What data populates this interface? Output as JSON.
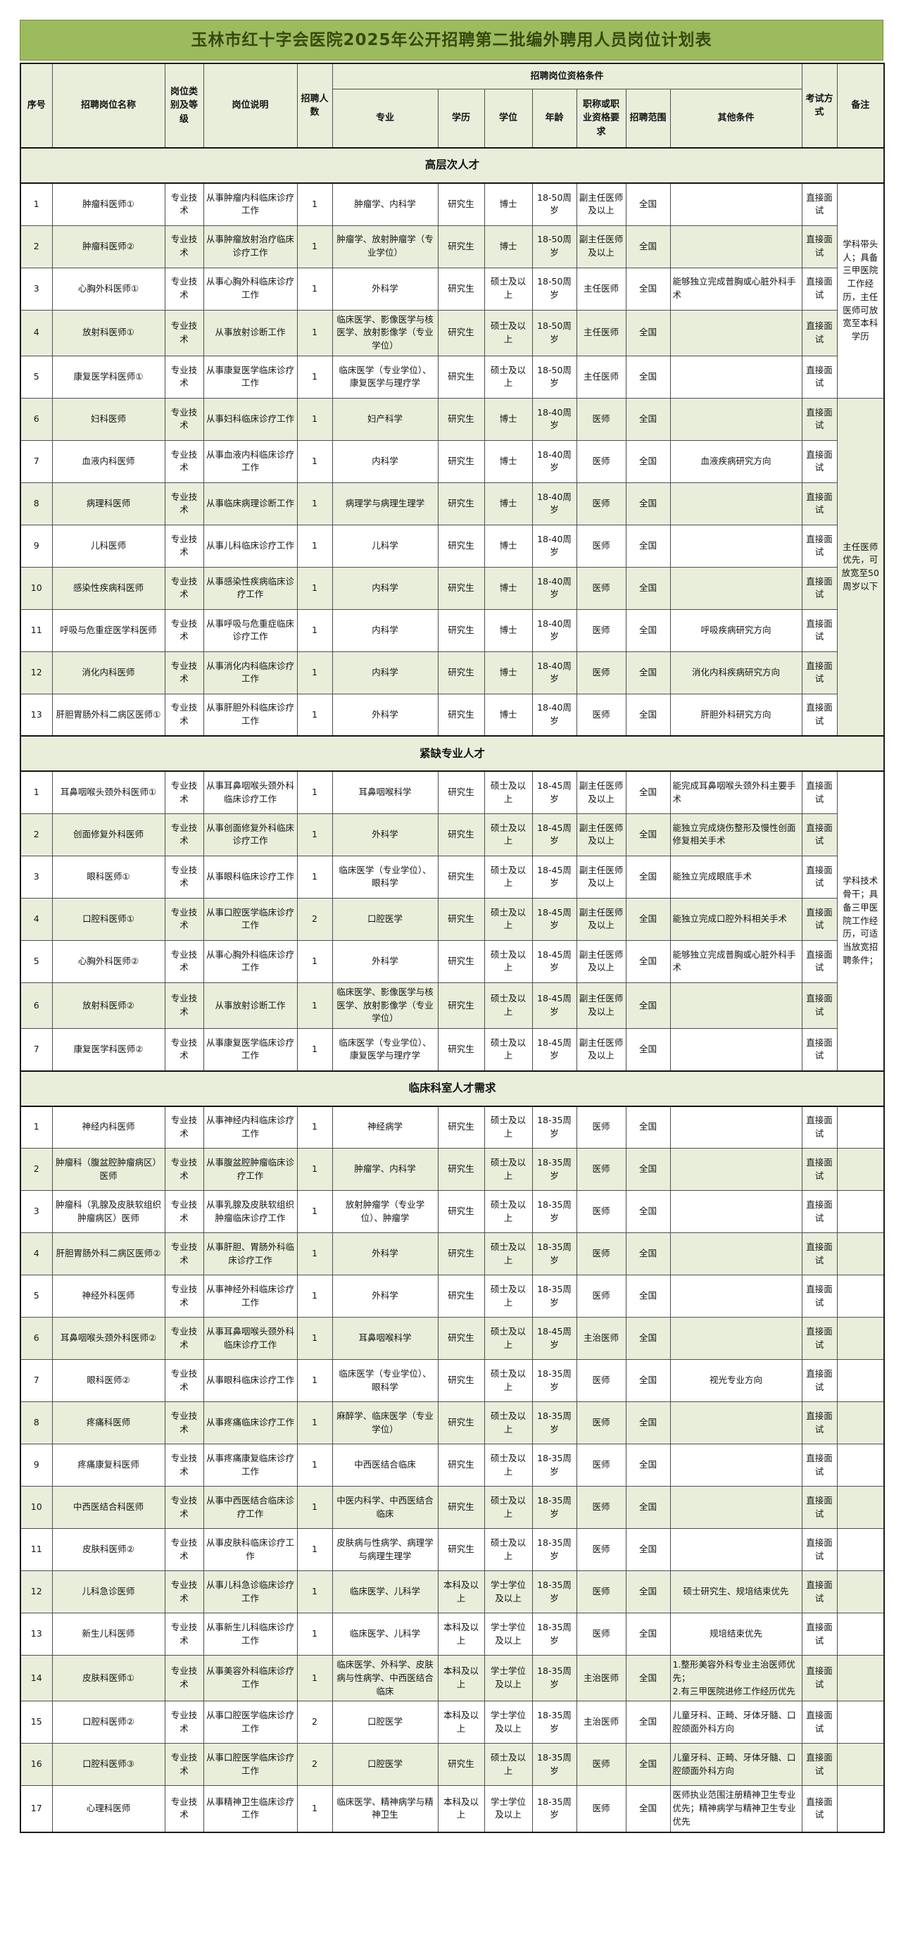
{
  "title": "玉林市红十字会医院2025年公开招聘第二批编外聘用人员岗位计划表",
  "colors": {
    "title_bg": "#9cbb5e",
    "title_text": "#36490f",
    "header_bg": "#e9eedb",
    "row_alt_bg": "#e9eedb",
    "row_bg": "#ffffff",
    "border": "#4f4f4f"
  },
  "header": {
    "seq": "序号",
    "post_name": "招聘岗位名称",
    "post_category": "岗位类别及等级",
    "post_desc": "岗位说明",
    "headcount": "招聘人数",
    "qual_group": "招聘岗位资格条件",
    "major": "专业",
    "education": "学历",
    "degree": "学位",
    "age": "年龄",
    "title_req": "职称或职业资格要求",
    "scope": "招聘范围",
    "other": "其他条件",
    "exam": "考试方式",
    "remark": "备注"
  },
  "sections": [
    {
      "name": "高层次人才",
      "remarks": [
        {
          "start": 0,
          "span": 5,
          "bg": "white",
          "text": "学科带头人；具备三甲医院工作经历，主任医师可放宽至本科学历"
        },
        {
          "start": 5,
          "span": 8,
          "bg": "green",
          "text": "主任医师优先，可放宽至50周岁以下"
        }
      ],
      "rows": [
        {
          "seq": "1",
          "name": "肿瘤科医师①",
          "category": "专业技术",
          "desc": "从事肿瘤内科临床诊疗工作",
          "count": "1",
          "major": "肿瘤学、内科学",
          "edu": "研究生",
          "degree": "博士",
          "age": "18-50周岁",
          "title": "副主任医师及以上",
          "scope": "全国",
          "other": "",
          "exam": "直接面试"
        },
        {
          "seq": "2",
          "name": "肿瘤科医师②",
          "category": "专业技术",
          "desc": "从事肿瘤放射治疗临床诊疗工作",
          "count": "1",
          "major": "肿瘤学、放射肿瘤学（专业学位）",
          "edu": "研究生",
          "degree": "博士",
          "age": "18-50周岁",
          "title": "副主任医师及以上",
          "scope": "全国",
          "other": "",
          "exam": "直接面试"
        },
        {
          "seq": "3",
          "name": "心胸外科医师①",
          "category": "专业技术",
          "desc": "从事心胸外科临床诊疗工作",
          "count": "1",
          "major": "外科学",
          "edu": "研究生",
          "degree": "硕士及以上",
          "age": "18-50周岁",
          "title": "主任医师",
          "scope": "全国",
          "other": "能够独立完成普胸或心脏外科手术",
          "exam": "直接面试"
        },
        {
          "seq": "4",
          "name": "放射科医师①",
          "category": "专业技术",
          "desc": "从事放射诊断工作",
          "count": "1",
          "major": "临床医学、影像医学与核医学、放射影像学（专业学位）",
          "edu": "研究生",
          "degree": "硕士及以上",
          "age": "18-50周岁",
          "title": "主任医师",
          "scope": "全国",
          "other": "",
          "exam": "直接面试"
        },
        {
          "seq": "5",
          "name": "康复医学科医师①",
          "category": "专业技术",
          "desc": "从事康复医学临床诊疗工作",
          "count": "1",
          "major": "临床医学（专业学位）、康复医学与理疗学",
          "edu": "研究生",
          "degree": "硕士及以上",
          "age": "18-50周岁",
          "title": "主任医师",
          "scope": "全国",
          "other": "",
          "exam": "直接面试"
        },
        {
          "seq": "6",
          "name": "妇科医师",
          "category": "专业技术",
          "desc": "从事妇科临床诊疗工作",
          "count": "1",
          "major": "妇产科学",
          "edu": "研究生",
          "degree": "博士",
          "age": "18-40周岁",
          "title": "医师",
          "scope": "全国",
          "other": "",
          "exam": "直接面试"
        },
        {
          "seq": "7",
          "name": "血液内科医师",
          "category": "专业技术",
          "desc": "从事血液内科临床诊疗工作",
          "count": "1",
          "major": "内科学",
          "edu": "研究生",
          "degree": "博士",
          "age": "18-40周岁",
          "title": "医师",
          "scope": "全国",
          "other": "血液疾病研究方向",
          "exam": "直接面试"
        },
        {
          "seq": "8",
          "name": "病理科医师",
          "category": "专业技术",
          "desc": "从事临床病理诊断工作",
          "count": "1",
          "major": "病理学与病理生理学",
          "edu": "研究生",
          "degree": "博士",
          "age": "18-40周岁",
          "title": "医师",
          "scope": "全国",
          "other": "",
          "exam": "直接面试"
        },
        {
          "seq": "9",
          "name": "儿科医师",
          "category": "专业技术",
          "desc": "从事儿科临床诊疗工作",
          "count": "1",
          "major": "儿科学",
          "edu": "研究生",
          "degree": "博士",
          "age": "18-40周岁",
          "title": "医师",
          "scope": "全国",
          "other": "",
          "exam": "直接面试"
        },
        {
          "seq": "10",
          "name": "感染性疾病科医师",
          "category": "专业技术",
          "desc": "从事感染性疾病临床诊疗工作",
          "count": "1",
          "major": "内科学",
          "edu": "研究生",
          "degree": "博士",
          "age": "18-40周岁",
          "title": "医师",
          "scope": "全国",
          "other": "",
          "exam": "直接面试"
        },
        {
          "seq": "11",
          "name": "呼吸与危重症医学科医师",
          "category": "专业技术",
          "desc": "从事呼吸与危重症临床诊疗工作",
          "count": "1",
          "major": "内科学",
          "edu": "研究生",
          "degree": "博士",
          "age": "18-40周岁",
          "title": "医师",
          "scope": "全国",
          "other": "呼吸疾病研究方向",
          "exam": "直接面试"
        },
        {
          "seq": "12",
          "name": "消化内科医师",
          "category": "专业技术",
          "desc": "从事消化内科临床诊疗工作",
          "count": "1",
          "major": "内科学",
          "edu": "研究生",
          "degree": "博士",
          "age": "18-40周岁",
          "title": "医师",
          "scope": "全国",
          "other": "消化内科疾病研究方向",
          "exam": "直接面试"
        },
        {
          "seq": "13",
          "name": "肝胆胃肠外科二病区医师①",
          "category": "专业技术",
          "desc": "从事肝胆外科临床诊疗工作",
          "count": "1",
          "major": "外科学",
          "edu": "研究生",
          "degree": "博士",
          "age": "18-40周岁",
          "title": "医师",
          "scope": "全国",
          "other": "肝胆外科研究方向",
          "exam": "直接面试"
        }
      ]
    },
    {
      "name": "紧缺专业人才",
      "remarks": [
        {
          "start": 0,
          "span": 7,
          "bg": "white",
          "text": "学科技术骨干；具备三甲医院工作经历，可适当放宽招聘条件；"
        }
      ],
      "rows": [
        {
          "seq": "1",
          "name": "耳鼻咽喉头颈外科医师①",
          "category": "专业技术",
          "desc": "从事耳鼻咽喉头颈外科临床诊疗工作",
          "count": "1",
          "major": "耳鼻咽喉科学",
          "edu": "研究生",
          "degree": "硕士及以上",
          "age": "18-45周岁",
          "title": "副主任医师及以上",
          "scope": "全国",
          "other": "能完成耳鼻咽喉头颈外科主要手术",
          "exam": "直接面试"
        },
        {
          "seq": "2",
          "name": "创面修复外科医师",
          "category": "专业技术",
          "desc": "从事创面修复外科临床诊疗工作",
          "count": "1",
          "major": "外科学",
          "edu": "研究生",
          "degree": "硕士及以上",
          "age": "18-45周岁",
          "title": "副主任医师及以上",
          "scope": "全国",
          "other": "能独立完成烧伤整形及慢性创面修复相关手术",
          "exam": "直接面试"
        },
        {
          "seq": "3",
          "name": "眼科医师①",
          "category": "专业技术",
          "desc": "从事眼科临床诊疗工作",
          "count": "1",
          "major": "临床医学（专业学位）、眼科学",
          "edu": "研究生",
          "degree": "硕士及以上",
          "age": "18-45周岁",
          "title": "副主任医师及以上",
          "scope": "全国",
          "other": "能独立完成眼底手术",
          "exam": "直接面试"
        },
        {
          "seq": "4",
          "name": "口腔科医师①",
          "category": "专业技术",
          "desc": "从事口腔医学临床诊疗工作",
          "count": "2",
          "major": "口腔医学",
          "edu": "研究生",
          "degree": "硕士及以上",
          "age": "18-45周岁",
          "title": "副主任医师及以上",
          "scope": "全国",
          "other": "能独立完成口腔外科相关手术",
          "exam": "直接面试"
        },
        {
          "seq": "5",
          "name": "心胸外科医师②",
          "category": "专业技术",
          "desc": "从事心胸外科临床诊疗工作",
          "count": "1",
          "major": "外科学",
          "edu": "研究生",
          "degree": "硕士及以上",
          "age": "18-45周岁",
          "title": "副主任医师及以上",
          "scope": "全国",
          "other": "能够独立完成普胸或心脏外科手术",
          "exam": "直接面试"
        },
        {
          "seq": "6",
          "name": "放射科医师②",
          "category": "专业技术",
          "desc": "从事放射诊断工作",
          "count": "1",
          "major": "临床医学、影像医学与核医学、放射影像学（专业学位）",
          "edu": "研究生",
          "degree": "硕士及以上",
          "age": "18-45周岁",
          "title": "副主任医师及以上",
          "scope": "全国",
          "other": "",
          "exam": "直接面试"
        },
        {
          "seq": "7",
          "name": "康复医学科医师②",
          "category": "专业技术",
          "desc": "从事康复医学临床诊疗工作",
          "count": "1",
          "major": "临床医学（专业学位）、康复医学与理疗学",
          "edu": "研究生",
          "degree": "硕士及以上",
          "age": "18-45周岁",
          "title": "副主任医师及以上",
          "scope": "全国",
          "other": "",
          "exam": "直接面试"
        }
      ]
    },
    {
      "name": "临床科室人才需求",
      "remarks": [],
      "rows": [
        {
          "seq": "1",
          "name": "神经内科医师",
          "category": "专业技术",
          "desc": "从事神经内科临床诊疗工作",
          "count": "1",
          "major": "神经病学",
          "edu": "研究生",
          "degree": "硕士及以上",
          "age": "18-35周岁",
          "title": "医师",
          "scope": "全国",
          "other": "",
          "exam": "直接面试"
        },
        {
          "seq": "2",
          "name": "肿瘤科（腹盆腔肿瘤病区）医师",
          "category": "专业技术",
          "desc": "从事腹盆腔肿瘤临床诊疗工作",
          "count": "1",
          "major": "肿瘤学、内科学",
          "edu": "研究生",
          "degree": "硕士及以上",
          "age": "18-35周岁",
          "title": "医师",
          "scope": "全国",
          "other": "",
          "exam": "直接面试"
        },
        {
          "seq": "3",
          "name": "肿瘤科（乳腺及皮肤软组织肿瘤病区）医师",
          "category": "专业技术",
          "desc": "从事乳腺及皮肤软组织肿瘤临床诊疗工作",
          "count": "1",
          "major": "放射肿瘤学（专业学位）、肿瘤学",
          "edu": "研究生",
          "degree": "硕士及以上",
          "age": "18-35周岁",
          "title": "医师",
          "scope": "全国",
          "other": "",
          "exam": "直接面试"
        },
        {
          "seq": "4",
          "name": "肝胆胃肠外科二病区医师②",
          "category": "专业技术",
          "desc": "从事肝胆、胃肠外科临床诊疗工作",
          "count": "1",
          "major": "外科学",
          "edu": "研究生",
          "degree": "硕士及以上",
          "age": "18-35周岁",
          "title": "医师",
          "scope": "全国",
          "other": "",
          "exam": "直接面试"
        },
        {
          "seq": "5",
          "name": "神经外科医师",
          "category": "专业技术",
          "desc": "从事神经外科临床诊疗工作",
          "count": "1",
          "major": "外科学",
          "edu": "研究生",
          "degree": "硕士及以上",
          "age": "18-35周岁",
          "title": "医师",
          "scope": "全国",
          "other": "",
          "exam": "直接面试"
        },
        {
          "seq": "6",
          "name": "耳鼻咽喉头颈外科医师②",
          "category": "专业技术",
          "desc": "从事耳鼻咽喉头颈外科临床诊疗工作",
          "count": "1",
          "major": "耳鼻咽喉科学",
          "edu": "研究生",
          "degree": "硕士及以上",
          "age": "18-45周岁",
          "title": "主治医师",
          "scope": "全国",
          "other": "",
          "exam": "直接面试"
        },
        {
          "seq": "7",
          "name": "眼科医师②",
          "category": "专业技术",
          "desc": "从事眼科临床诊疗工作",
          "count": "1",
          "major": "临床医学（专业学位）、眼科学",
          "edu": "研究生",
          "degree": "硕士及以上",
          "age": "18-35周岁",
          "title": "医师",
          "scope": "全国",
          "other": "视光专业方向",
          "exam": "直接面试"
        },
        {
          "seq": "8",
          "name": "疼痛科医师",
          "category": "专业技术",
          "desc": "从事疼痛临床诊疗工作",
          "count": "1",
          "major": "麻醉学、临床医学（专业学位）",
          "edu": "研究生",
          "degree": "硕士及以上",
          "age": "18-35周岁",
          "title": "医师",
          "scope": "全国",
          "other": "",
          "exam": "直接面试"
        },
        {
          "seq": "9",
          "name": "疼痛康复科医师",
          "category": "专业技术",
          "desc": "从事疼痛康复临床诊疗工作",
          "count": "1",
          "major": "中西医结合临床",
          "edu": "研究生",
          "degree": "硕士及以上",
          "age": "18-35周岁",
          "title": "医师",
          "scope": "全国",
          "other": "",
          "exam": "直接面试"
        },
        {
          "seq": "10",
          "name": "中西医结合科医师",
          "category": "专业技术",
          "desc": "从事中西医结合临床诊疗工作",
          "count": "1",
          "major": "中医内科学、中西医结合临床",
          "edu": "研究生",
          "degree": "硕士及以上",
          "age": "18-35周岁",
          "title": "医师",
          "scope": "全国",
          "other": "",
          "exam": "直接面试"
        },
        {
          "seq": "11",
          "name": "皮肤科医师②",
          "category": "专业技术",
          "desc": "从事皮肤科临床诊疗工作",
          "count": "1",
          "major": "皮肤病与性病学、病理学与病理生理学",
          "edu": "研究生",
          "degree": "硕士及以上",
          "age": "18-35周岁",
          "title": "医师",
          "scope": "全国",
          "other": "",
          "exam": "直接面试"
        },
        {
          "seq": "12",
          "name": "儿科急诊医师",
          "category": "专业技术",
          "desc": "从事儿科急诊临床诊疗工作",
          "count": "1",
          "major": "临床医学、儿科学",
          "edu": "本科及以上",
          "degree": "学士学位及以上",
          "age": "18-35周岁",
          "title": "医师",
          "scope": "全国",
          "other": "硕士研究生、规培结束优先",
          "exam": "直接面试"
        },
        {
          "seq": "13",
          "name": "新生儿科医师",
          "category": "专业技术",
          "desc": "从事新生儿科临床诊疗工作",
          "count": "1",
          "major": "临床医学、儿科学",
          "edu": "本科及以上",
          "degree": "学士学位及以上",
          "age": "18-35周岁",
          "title": "医师",
          "scope": "全国",
          "other": "规培结束优先",
          "exam": "直接面试"
        },
        {
          "seq": "14",
          "name": "皮肤科医师①",
          "category": "专业技术",
          "desc": "从事美容外科临床诊疗工作",
          "count": "1",
          "major": "临床医学、外科学、皮肤病与性病学、中西医结合临床",
          "edu": "本科及以上",
          "degree": "学士学位及以上",
          "age": "18-35周岁",
          "title": "主治医师",
          "scope": "全国",
          "other": "1.整形美容外科专业主治医师优先；\n2.有三甲医院进修工作经历优先",
          "exam": "直接面试"
        },
        {
          "seq": "15",
          "name": "口腔科医师②",
          "category": "专业技术",
          "desc": "从事口腔医学临床诊疗工作",
          "count": "2",
          "major": "口腔医学",
          "edu": "本科及以上",
          "degree": "学士学位及以上",
          "age": "18-35周岁",
          "title": "主治医师",
          "scope": "全国",
          "other": "儿童牙科、正畸、牙体牙髓、口腔颌面外科方向",
          "exam": "直接面试"
        },
        {
          "seq": "16",
          "name": "口腔科医师③",
          "category": "专业技术",
          "desc": "从事口腔医学临床诊疗工作",
          "count": "2",
          "major": "口腔医学",
          "edu": "研究生",
          "degree": "硕士及以上",
          "age": "18-35周岁",
          "title": "医师",
          "scope": "全国",
          "other": "儿童牙科、正畸、牙体牙髓、口腔颌面外科方向",
          "exam": "直接面试"
        },
        {
          "seq": "17",
          "name": "心理科医师",
          "category": "专业技术",
          "desc": "从事精神卫生临床诊疗工作",
          "count": "1",
          "major": "临床医学、精神病学与精神卫生",
          "edu": "本科及以上",
          "degree": "学士学位及以上",
          "age": "18-35周岁",
          "title": "医师",
          "scope": "全国",
          "other": "医师执业范围注册精神卫生专业优先；精神病学与精神卫生专业优先",
          "exam": "直接面试"
        }
      ]
    }
  ]
}
